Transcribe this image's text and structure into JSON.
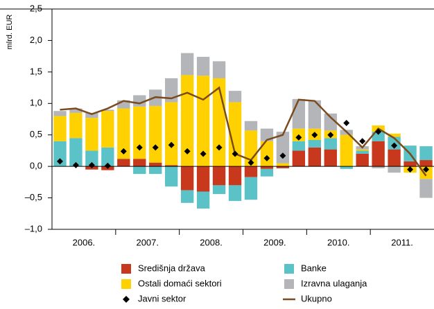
{
  "chart_data": {
    "type": "stacked-bar",
    "y_label": "mlrd. EUR",
    "categories": [
      "2006.",
      null,
      null,
      null,
      "2007.",
      null,
      null,
      null,
      "2008.",
      null,
      null,
      null,
      "2009.",
      null,
      null,
      null,
      "2010.",
      null,
      null,
      null,
      "2011.",
      null,
      null,
      null
    ],
    "series": [
      {
        "name": "Središnja država",
        "color": "#c8381c",
        "values": [
          0,
          0,
          -0.05,
          -0.06,
          0.12,
          0.12,
          0.06,
          0.02,
          -0.38,
          -0.4,
          -0.3,
          -0.3,
          -0.17,
          -0.04,
          -0.03,
          0.25,
          0.3,
          0.27,
          0,
          0.2,
          0.4,
          0.27,
          0.08,
          0.1
        ]
      },
      {
        "name": "Banke",
        "color": "#5bc2c7",
        "values": [
          0.4,
          0.45,
          0.25,
          0.3,
          0,
          -0.12,
          -0.12,
          -0.32,
          -0.2,
          -0.27,
          -0.14,
          -0.25,
          -0.36,
          -0.12,
          0,
          0.15,
          0.12,
          0.18,
          -0.04,
          0.05,
          0.15,
          0.2,
          0.25,
          0.22
        ]
      },
      {
        "name": "Ostali domaći sektori",
        "color": "#ffd100",
        "values": [
          0.4,
          0.4,
          0.52,
          0.58,
          0.8,
          0.83,
          0.9,
          1.0,
          1.45,
          1.44,
          1.4,
          1.02,
          0.57,
          0.4,
          0.05,
          0.2,
          0.18,
          0.12,
          0.5,
          0.02,
          0.1,
          0.05,
          -0.1,
          -0.2
        ]
      },
      {
        "name": "Izravna ulaganja",
        "color": "#b3b5b8",
        "values": [
          0.08,
          0.07,
          0.08,
          0.02,
          0.13,
          0.18,
          0.26,
          0.38,
          0.35,
          0.3,
          0.27,
          0.18,
          0.15,
          0.2,
          0.5,
          0.47,
          0.45,
          0.27,
          0.08,
          0.05,
          -0.03,
          -0.1,
          0,
          -0.3
        ]
      },
      {
        "name": "Javni sektor",
        "type": "scatter",
        "color": "#000000",
        "values": [
          0.08,
          0.02,
          0.02,
          0.01,
          0.24,
          0.3,
          0.3,
          0.34,
          0.24,
          0.2,
          0.3,
          0.2,
          0.06,
          0.13,
          0.17,
          0.46,
          0.5,
          0.5,
          0.69,
          0.4,
          0.55,
          0.33,
          -0.05,
          -0.05
        ]
      },
      {
        "name": "Ukupno",
        "type": "line",
        "color": "#7a4b1e",
        "values": [
          0.9,
          0.92,
          0.83,
          0.92,
          1.04,
          1.0,
          1.1,
          1.08,
          1.17,
          1.06,
          1.25,
          0.2,
          0.1,
          0.42,
          0.5,
          1.06,
          1.04,
          0.78,
          0.55,
          0.3,
          0.6,
          0.45,
          0.2,
          -0.15
        ]
      }
    ],
    "ylim": [
      -1,
      2.5
    ],
    "yticks": [
      {
        "value": -1,
        "label": "–1,0"
      },
      {
        "value": -0.5,
        "label": "–0,5"
      },
      {
        "value": 0,
        "label": "0,0"
      },
      {
        "value": 0.5,
        "label": "0,5"
      },
      {
        "value": 1,
        "label": "1,0"
      },
      {
        "value": 1.5,
        "label": "1,5"
      },
      {
        "value": 2,
        "label": "2,0"
      },
      {
        "value": 2.5,
        "label": "2,5"
      }
    ]
  }
}
